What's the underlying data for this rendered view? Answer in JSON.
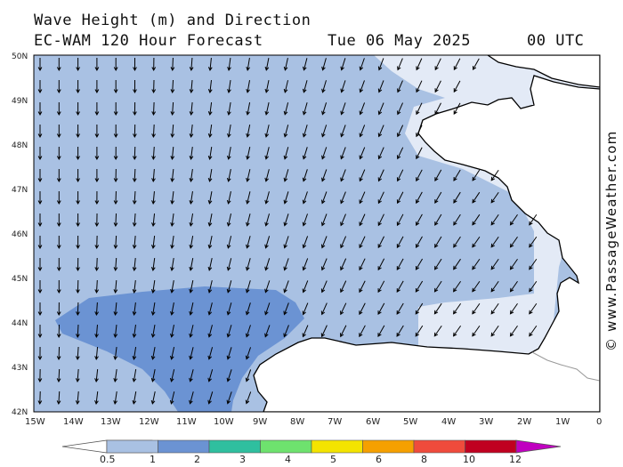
{
  "header": {
    "title": "Wave Height (m) and Direction",
    "model": "EC-WAM 120 Hour Forecast",
    "date": "Tue 06 May 2025",
    "time": "00 UTC"
  },
  "credit": "© www.PassageWeather.com",
  "map": {
    "lat_labels": [
      "50N",
      "49N",
      "48N",
      "47N",
      "46N",
      "45N",
      "44N",
      "43N",
      "42N"
    ],
    "lon_labels": [
      "15W",
      "14W",
      "13W",
      "12W",
      "11W",
      "10W",
      "9W",
      "8W",
      "7W",
      "6W",
      "5W",
      "4W",
      "3W",
      "2W",
      "1W",
      "0"
    ],
    "lat_range": [
      42,
      50
    ],
    "lon_range": [
      -15,
      0
    ],
    "wave_direction": "southward / south-westward swell",
    "colors": {
      "sea_0_5_1": "#e3eaf6",
      "sea_1_2": "#a9c1e3",
      "sea_2_3": "#6b93d3",
      "land": "#ffffff",
      "coast": "#000000",
      "border": "#999999",
      "arrow": "#000000"
    }
  },
  "colorbar": {
    "labels": [
      "0.5",
      "1",
      "2",
      "3",
      "4",
      "5",
      "6",
      "8",
      "10",
      "12"
    ],
    "colors": [
      "#e3eaf6",
      "#a9c1e3",
      "#6b93d3",
      "#2fbf9f",
      "#6ee26e",
      "#f3e400",
      "#f5a000",
      "#ef4b3c",
      "#c00020",
      "#c000c0"
    ]
  }
}
